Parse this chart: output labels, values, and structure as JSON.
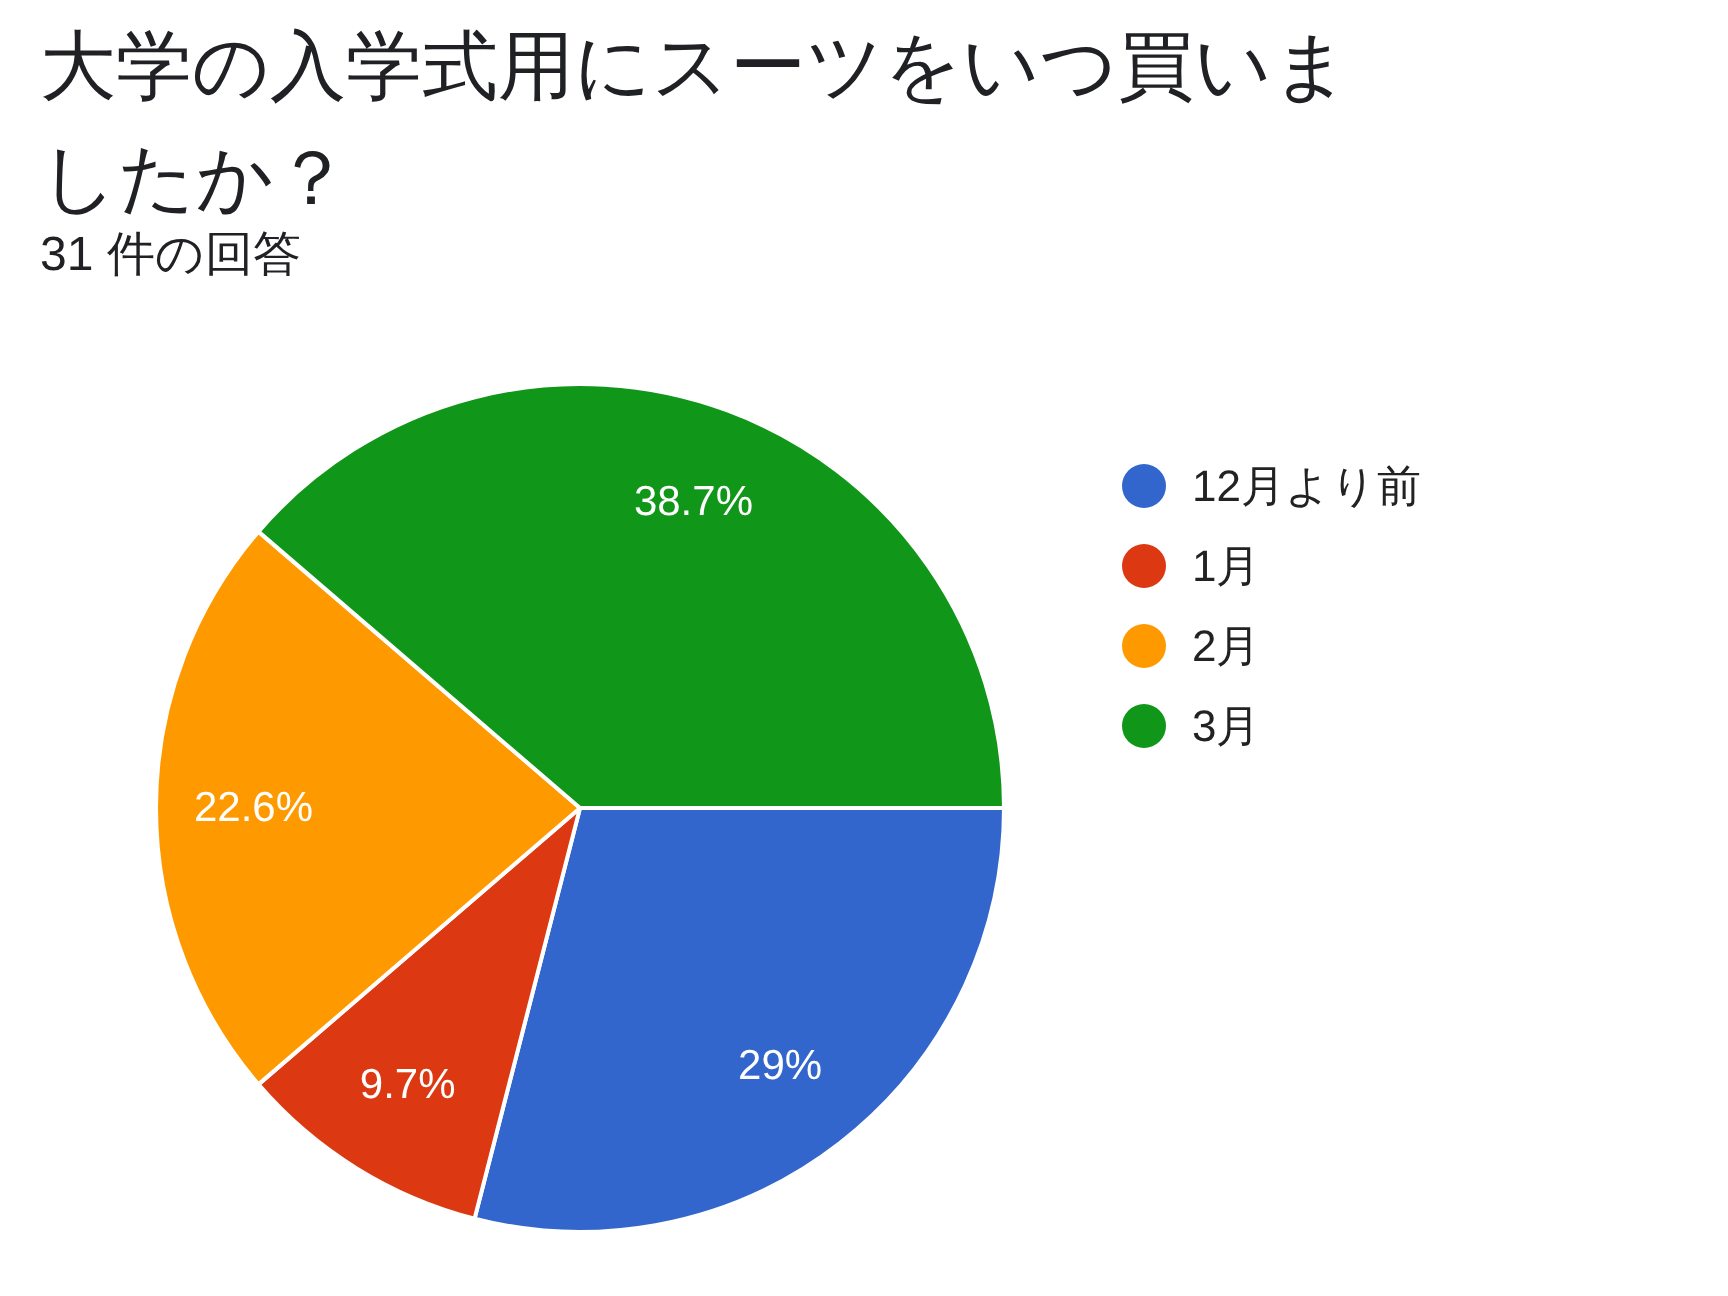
{
  "chart_data": {
    "type": "pie",
    "title": "大学の入学式用にスーツをいつ買いましたか？",
    "subtitle": "31 件の回答",
    "categories": [
      "12月より前",
      "1月",
      "2月",
      "3月"
    ],
    "values": [
      29,
      9.7,
      22.6,
      38.7
    ],
    "colors": [
      "#3366cc",
      "#dc3912",
      "#ff9900",
      "#109618"
    ],
    "value_labels": [
      "29%",
      "9.7%",
      "22.6%",
      "38.7%"
    ],
    "legend": "top right"
  }
}
